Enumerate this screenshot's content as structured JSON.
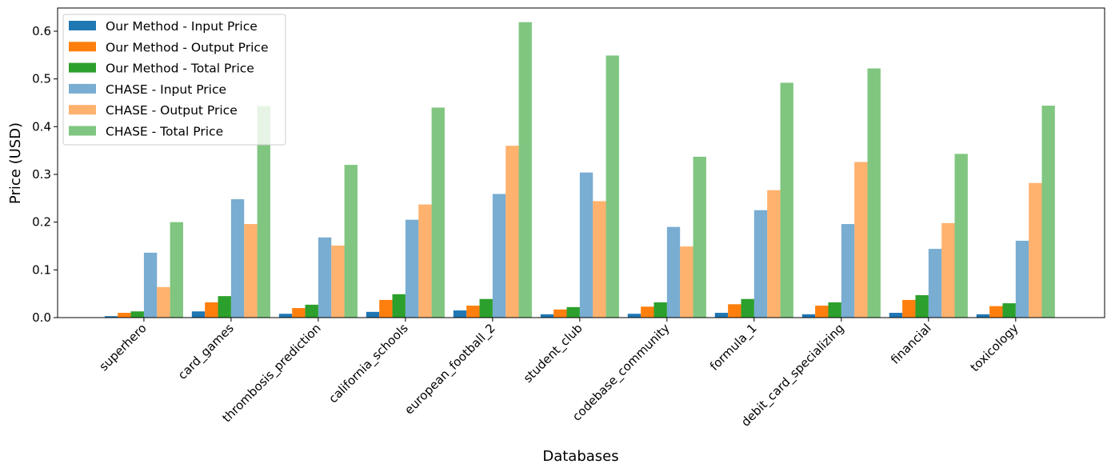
{
  "chart_data": {
    "type": "bar",
    "title": "",
    "xlabel": "Databases",
    "ylabel": "Price (USD)",
    "ylim": [
      0,
      0.65
    ],
    "yticks": [
      "0.0",
      "0.1",
      "0.2",
      "0.3",
      "0.4",
      "0.5",
      "0.6"
    ],
    "grid": false,
    "legend_position": "top-left",
    "categories": [
      "superhero",
      "card_games",
      "thrombosis_prediction",
      "california_schools",
      "european_football_2",
      "student_club",
      "codebase_community",
      "formula_1",
      "debit_card_specializing",
      "financial",
      "toxicology"
    ],
    "series": [
      {
        "name": "Our Method - Input Price",
        "color": "#1f77b4",
        "opacity": 1,
        "values": [
          0.003,
          0.013,
          0.008,
          0.012,
          0.015,
          0.007,
          0.008,
          0.01,
          0.007,
          0.01,
          0.007
        ]
      },
      {
        "name": "Our Method - Output Price",
        "color": "#ff7f0e",
        "opacity": 1,
        "values": [
          0.01,
          0.032,
          0.02,
          0.037,
          0.025,
          0.017,
          0.023,
          0.028,
          0.025,
          0.037,
          0.024
        ]
      },
      {
        "name": "Our Method - Total Price",
        "color": "#2ca02c",
        "opacity": 1,
        "values": [
          0.013,
          0.045,
          0.027,
          0.049,
          0.039,
          0.022,
          0.032,
          0.039,
          0.032,
          0.047,
          0.03
        ]
      },
      {
        "name": "CHASE - Input Price",
        "color": "#1f77b4",
        "opacity": 0.6,
        "values": [
          0.136,
          0.248,
          0.168,
          0.205,
          0.259,
          0.304,
          0.19,
          0.225,
          0.196,
          0.144,
          0.161
        ]
      },
      {
        "name": "CHASE - Output Price",
        "color": "#ff7f0e",
        "opacity": 0.6,
        "values": [
          0.064,
          0.196,
          0.151,
          0.237,
          0.36,
          0.244,
          0.149,
          0.267,
          0.326,
          0.198,
          0.282
        ]
      },
      {
        "name": "CHASE - Total Price",
        "color": "#2ca02c",
        "opacity": 0.6,
        "values": [
          0.2,
          0.443,
          0.32,
          0.44,
          0.619,
          0.549,
          0.337,
          0.492,
          0.522,
          0.343,
          0.444
        ]
      }
    ]
  }
}
